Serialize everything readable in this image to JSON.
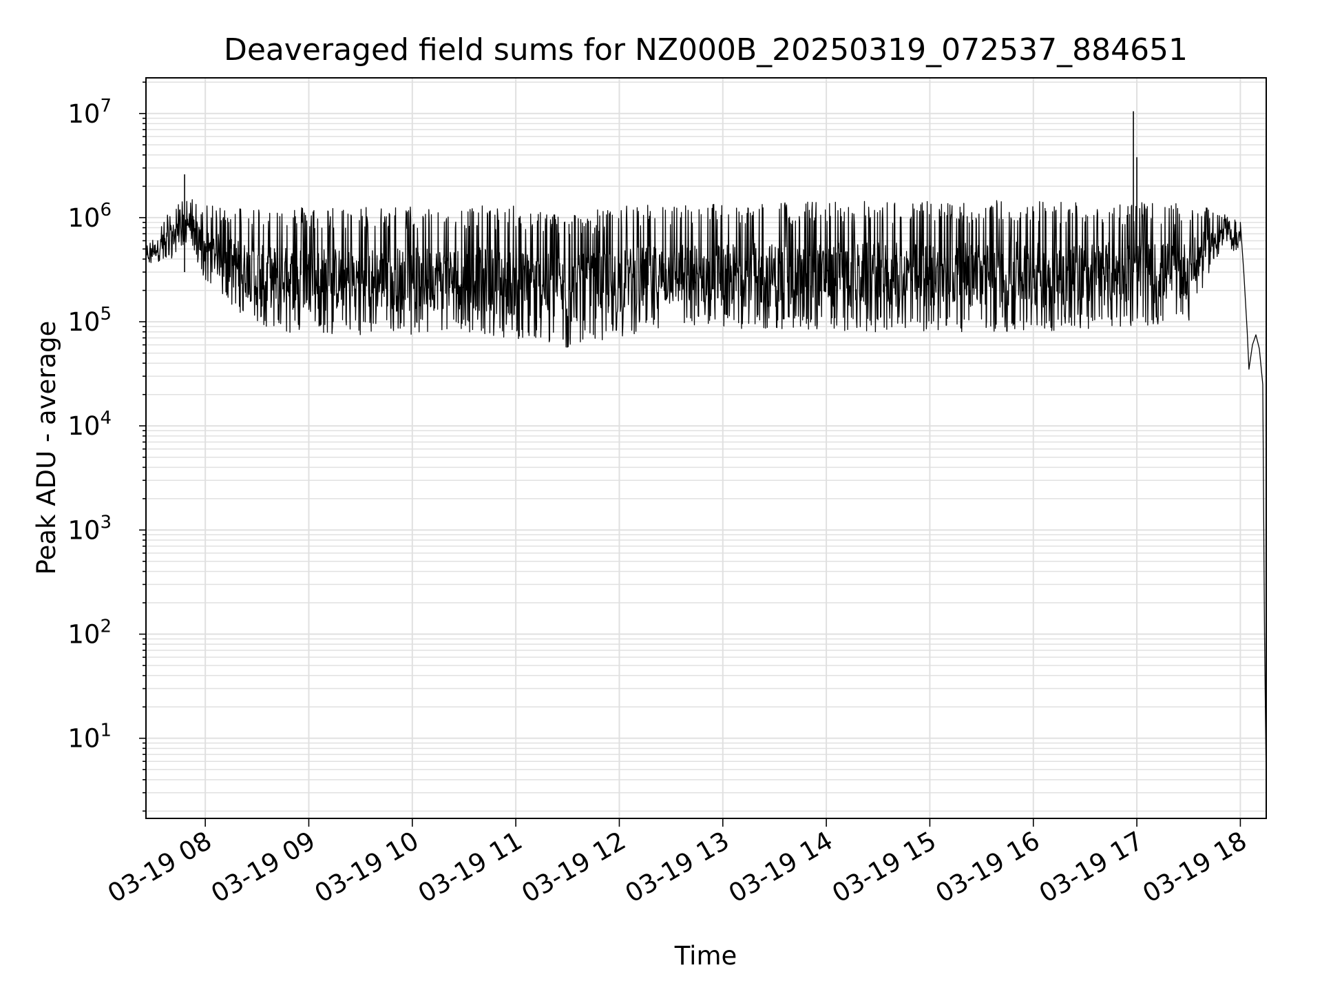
{
  "chart_data": {
    "type": "line",
    "title": "Deaveraged field sums for NZ000B_20250319_072537_884651",
    "xlabel": "Time",
    "ylabel": "Peak ADU - average",
    "yscale": "log",
    "grid": true,
    "line_color": "#000000",
    "grid_color": "#e0e0e0",
    "x_start": "2025-03-19T07:25:37",
    "x_end": "2025-03-19T18:15:00",
    "xlim": [
      "2025-03-19T07:25:37",
      "2025-03-19T18:15:00"
    ],
    "ylim": [
      1.7,
      22000000
    ],
    "x_ticks": [
      "2025-03-19T08:00",
      "2025-03-19T09:00",
      "2025-03-19T10:00",
      "2025-03-19T11:00",
      "2025-03-19T12:00",
      "2025-03-19T13:00",
      "2025-03-19T14:00",
      "2025-03-19T15:00",
      "2025-03-19T16:00",
      "2025-03-19T17:00",
      "2025-03-19T18:00"
    ],
    "x_tick_labels": [
      "03-19 08",
      "03-19 09",
      "03-19 10",
      "03-19 11",
      "03-19 12",
      "03-19 13",
      "03-19 14",
      "03-19 15",
      "03-19 16",
      "03-19 17",
      "03-19 18"
    ],
    "y_ticks": [
      {
        "base": "10",
        "exp": "1"
      },
      {
        "base": "10",
        "exp": "2"
      },
      {
        "base": "10",
        "exp": "3"
      },
      {
        "base": "10",
        "exp": "4"
      },
      {
        "base": "10",
        "exp": "5"
      },
      {
        "base": "10",
        "exp": "6"
      },
      {
        "base": "10",
        "exp": "7"
      }
    ],
    "envelope": {
      "times": [
        "2025-03-19T07:25",
        "2025-03-19T07:40",
        "2025-03-19T07:50",
        "2025-03-19T08:00",
        "2025-03-19T08:30",
        "2025-03-19T09:00",
        "2025-03-19T09:30",
        "2025-03-19T10:00",
        "2025-03-19T10:30",
        "2025-03-19T11:00",
        "2025-03-19T11:30",
        "2025-03-19T12:00",
        "2025-03-19T12:30",
        "2025-03-19T13:00",
        "2025-03-19T14:00",
        "2025-03-19T15:00",
        "2025-03-19T16:00",
        "2025-03-19T17:00",
        "2025-03-19T17:30",
        "2025-03-19T17:45",
        "2025-03-19T18:00"
      ],
      "lower": [
        350000,
        400000,
        600000,
        250000,
        85000,
        75000,
        75000,
        75000,
        80000,
        65000,
        55000,
        70000,
        85000,
        85000,
        80000,
        80000,
        80000,
        90000,
        100000,
        400000,
        500000
      ],
      "upper": [
        500000,
        1200000,
        1600000,
        1300000,
        1300000,
        1300000,
        1300000,
        1300000,
        1300000,
        1300000,
        1100000,
        1300000,
        1350000,
        1400000,
        1450000,
        1450000,
        1500000,
        1400000,
        1350000,
        1200000,
        900000
      ]
    },
    "spikes": [
      {
        "x": "2025-03-19T07:48",
        "y": 2600000
      },
      {
        "x": "2025-03-19T16:58",
        "y": 10500000
      },
      {
        "x": "2025-03-19T17:00",
        "y": 3800000
      }
    ],
    "dropoff": [
      {
        "x": "2025-03-19T18:00",
        "y": 900000
      },
      {
        "x": "2025-03-19T18:02",
        "y": 300000
      },
      {
        "x": "2025-03-19T18:04",
        "y": 80000
      },
      {
        "x": "2025-03-19T18:05",
        "y": 35000
      },
      {
        "x": "2025-03-19T18:07",
        "y": 60000
      },
      {
        "x": "2025-03-19T18:09",
        "y": 75000
      },
      {
        "x": "2025-03-19T18:11",
        "y": 55000
      },
      {
        "x": "2025-03-19T18:13",
        "y": 25000
      },
      {
        "x": "2025-03-19T18:14",
        "y": 100
      },
      {
        "x": "2025-03-19T18:15",
        "y": 3.8
      }
    ]
  }
}
